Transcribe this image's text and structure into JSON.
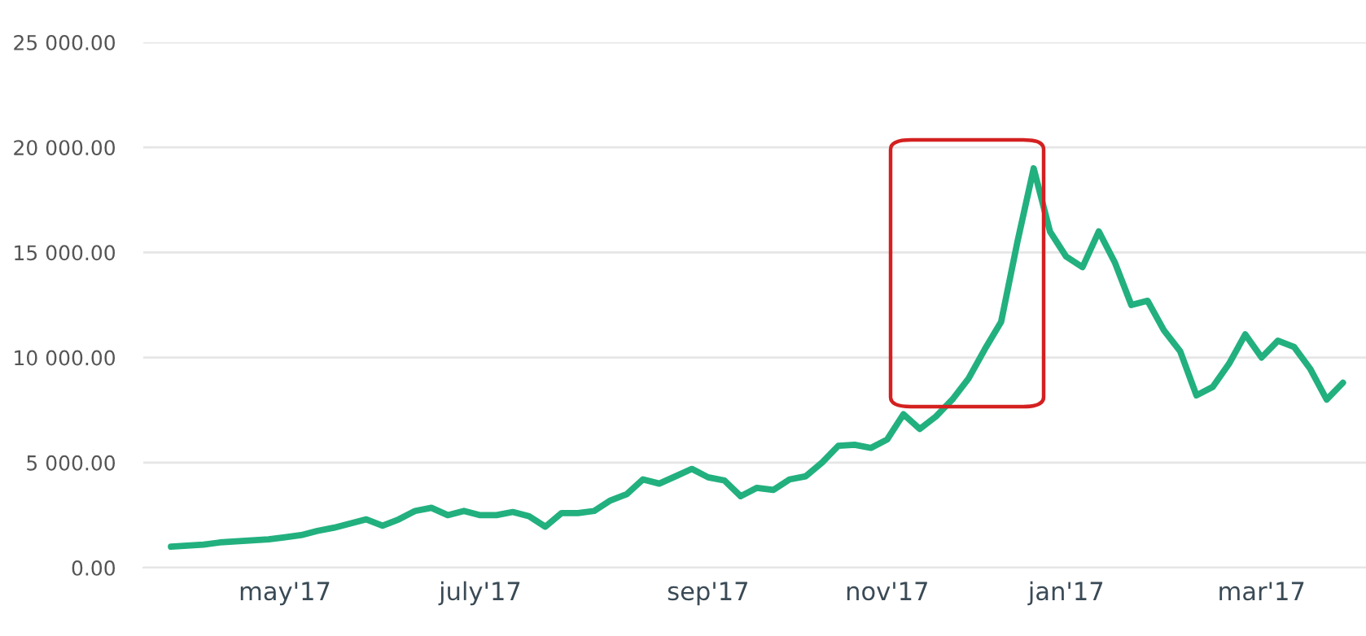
{
  "chart_data": {
    "type": "line",
    "categories": [
      null,
      null,
      null,
      null,
      null,
      null,
      null,
      "may'17",
      null,
      null,
      null,
      null,
      null,
      null,
      null,
      null,
      null,
      null,
      null,
      "july'17",
      null,
      null,
      null,
      null,
      null,
      null,
      null,
      null,
      null,
      null,
      null,
      null,
      null,
      "sep'17",
      null,
      null,
      null,
      null,
      null,
      null,
      null,
      null,
      null,
      null,
      "nov'17",
      null,
      null,
      null,
      null,
      null,
      null,
      null,
      null,
      null,
      null,
      "jan'17",
      null,
      null,
      null,
      null,
      null,
      null,
      null,
      null,
      null,
      null,
      null,
      "mar'17",
      null,
      null,
      null,
      null,
      null
    ],
    "series": [
      {
        "color": "#22b07f",
        "values": [
          1000,
          1050,
          1100,
          1200,
          1250,
          1300,
          1350,
          1450,
          1550,
          1750,
          1900,
          2100,
          2300,
          2000,
          2300,
          2700,
          2850,
          2500,
          2700,
          2500,
          2500,
          2650,
          2450,
          1950,
          2600,
          2600,
          2700,
          3200,
          3500,
          4200,
          4000,
          4350,
          4700,
          4300,
          4150,
          3400,
          3800,
          3700,
          4200,
          4350,
          5000,
          5800,
          5850,
          5700,
          6100,
          7300,
          6600,
          7200,
          8000,
          9000,
          10400,
          11700,
          15500,
          19000,
          16000,
          14800,
          14300,
          16000,
          14500,
          12500,
          12700,
          11300,
          10300,
          8200,
          8600,
          9700,
          11100,
          10000,
          10800,
          10500,
          9450,
          8000,
          8800
        ]
      }
    ],
    "ylim": [
      0,
      25000
    ],
    "yticks": [
      {
        "value": 0,
        "label": "0.00"
      },
      {
        "value": 5000,
        "label": "5 000.00"
      },
      {
        "value": 10000,
        "label": "10 000.00"
      },
      {
        "value": 15000,
        "label": "15 000.00"
      },
      {
        "value": 20000,
        "label": "20 000.00"
      },
      {
        "value": 25000,
        "label": "25 000.00"
      }
    ],
    "grid": "y",
    "marker": "none",
    "line_style": "solid"
  }
}
